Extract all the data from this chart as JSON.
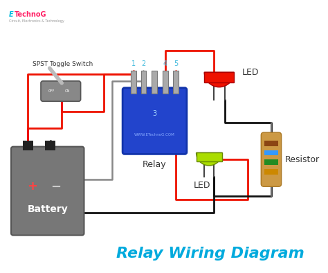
{
  "title": "Relay Wiring Diagram",
  "title_color": "#00AADD",
  "title_fontsize": 16,
  "bg_color": "#FFFFFF",
  "logo_e": "E",
  "logo_technog": "TechnoG",
  "logo_e_color": "#00BBDD",
  "logo_t_color": "#FF2266",
  "logo_sub": "Circuit, Electronics & Technology",
  "watermark": "WWW.ETechnoG.COM",
  "labels": {
    "spst": "SPST Toggle Switch",
    "relay": "Relay",
    "battery": "Battery",
    "led_red": "LED",
    "led_green": "LED",
    "resistor": "Resistor"
  },
  "relay_color": "#2244CC",
  "relay_edge": "#1133AA",
  "battery_color": "#777777",
  "battery_edge": "#555555",
  "switch_color": "#888888",
  "led_red_color": "#EE1100",
  "led_red_edge": "#AA0000",
  "led_green_color": "#AADD00",
  "led_green_edge": "#668800",
  "resistor_body": "#CC9944",
  "resistor_edge": "#AA7722",
  "wire_red": "#EE1100",
  "wire_black": "#111111",
  "wire_gray": "#888888",
  "pin_color": "#AADDFF",
  "band_colors": [
    "#8B4513",
    "#3399FF",
    "#228B22",
    "#CC8800"
  ]
}
